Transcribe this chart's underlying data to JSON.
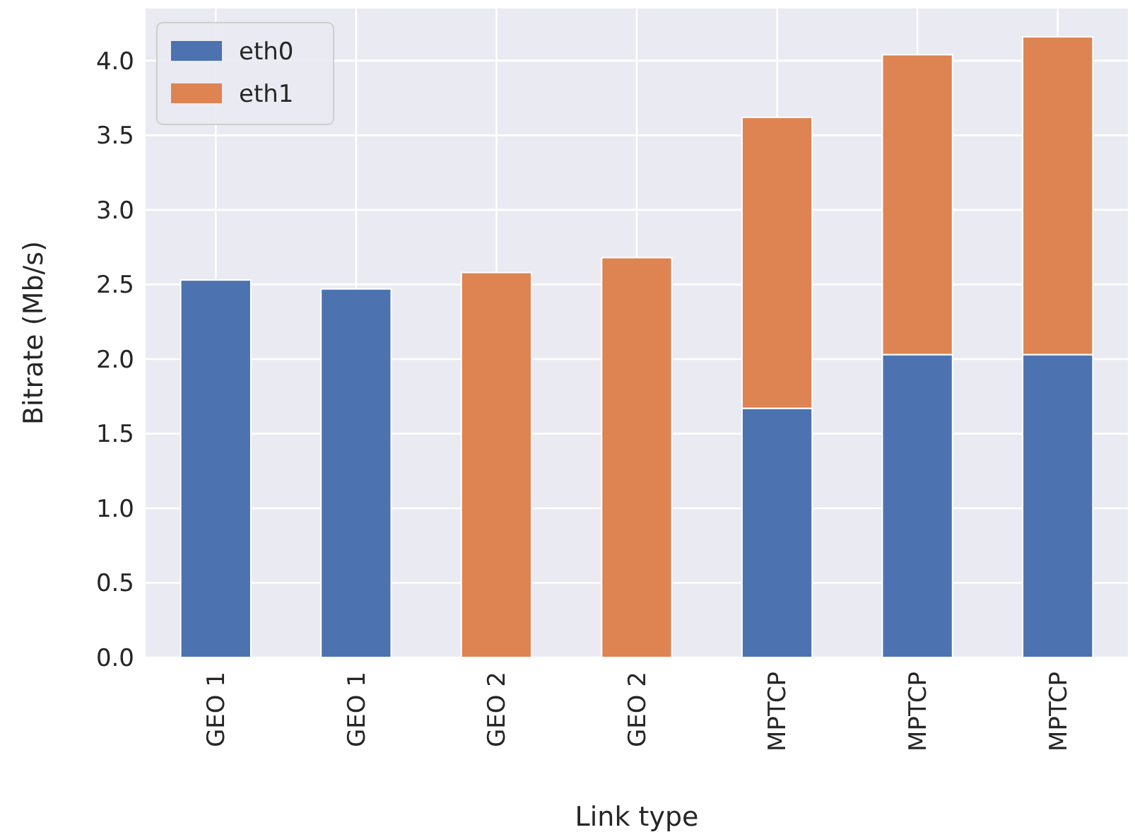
{
  "chart_data": {
    "type": "bar",
    "xlabel": "Link type",
    "ylabel": "Bitrate (Mb/s)",
    "categories": [
      "GEO 1",
      "GEO 1",
      "GEO 2",
      "GEO 2",
      "MPTCP",
      "MPTCP",
      "MPTCP"
    ],
    "stacked": true,
    "series": [
      {
        "name": "eth0",
        "color": "#4c72b0",
        "values": [
          2.53,
          2.47,
          0,
          0,
          1.67,
          2.03,
          2.03
        ]
      },
      {
        "name": "eth1",
        "color": "#dd8452",
        "values": [
          0,
          0,
          2.58,
          2.68,
          1.95,
          2.01,
          2.13
        ]
      }
    ],
    "ylim": [
      0,
      4.35
    ],
    "yticks": [
      {
        "value": 0,
        "label": "0.0"
      },
      {
        "value": 0.5,
        "label": "0.5"
      },
      {
        "value": 1,
        "label": "1.0"
      },
      {
        "value": 1.5,
        "label": "1.5"
      },
      {
        "value": 2,
        "label": "2.0"
      },
      {
        "value": 2.5,
        "label": "2.5"
      },
      {
        "value": 3,
        "label": "3.0"
      },
      {
        "value": 3.5,
        "label": "3.5"
      },
      {
        "value": 4,
        "label": "4.0"
      }
    ],
    "grid": true,
    "legend": "top left"
  }
}
